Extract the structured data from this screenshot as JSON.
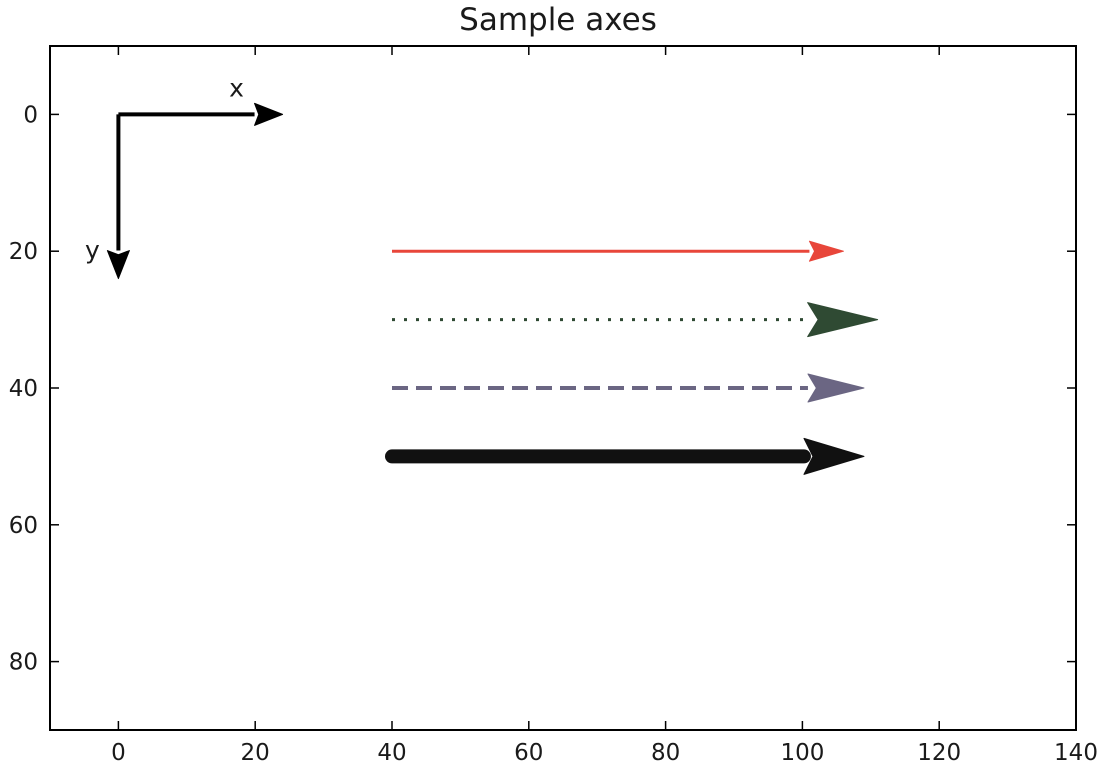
{
  "chart_data": {
    "type": "scatter",
    "title": "Sample axes",
    "xlabel": "",
    "ylabel": "",
    "xlim": [
      -10,
      140
    ],
    "ylim": [
      90,
      -10
    ],
    "y_axis_inverted": true,
    "grid": false,
    "legend": "none",
    "x_ticks": [
      0,
      20,
      40,
      60,
      80,
      100,
      120,
      140
    ],
    "y_ticks": [
      0,
      20,
      40,
      60,
      80
    ],
    "axis_annotations": [
      {
        "label": "x",
        "from": [
          0,
          0
        ],
        "to": [
          24,
          0
        ],
        "color": "#000000"
      },
      {
        "label": "y",
        "from": [
          0,
          0
        ],
        "to": [
          0,
          24
        ],
        "color": "#000000"
      }
    ],
    "arrows": [
      {
        "from": [
          40,
          20
        ],
        "to": [
          106,
          20
        ],
        "style": "solid",
        "weight": "thin",
        "color": "#e8463a"
      },
      {
        "from": [
          40,
          30
        ],
        "to": [
          111,
          30
        ],
        "style": "dotted",
        "weight": "thin",
        "color": "#2f4a33"
      },
      {
        "from": [
          40,
          40
        ],
        "to": [
          109,
          40
        ],
        "style": "dashed",
        "weight": "medium",
        "color": "#6b6683"
      },
      {
        "from": [
          40,
          50
        ],
        "to": [
          109,
          50
        ],
        "style": "solid",
        "weight": "thick",
        "color": "#111111"
      }
    ]
  }
}
